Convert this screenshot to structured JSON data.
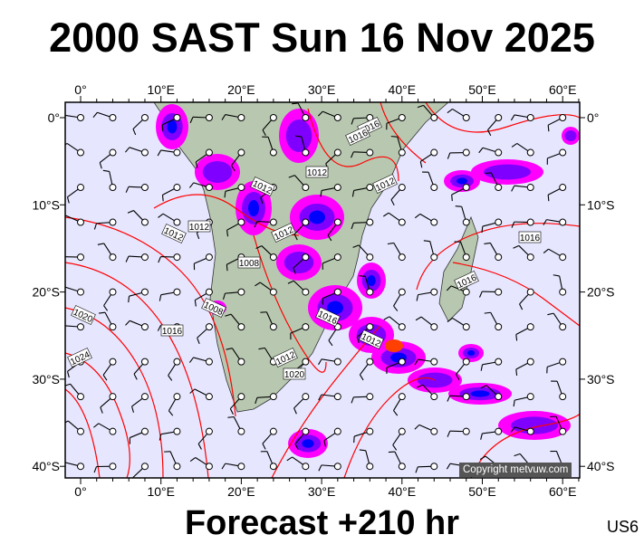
{
  "header": {
    "title": "2000 SAST Sun 16 Nov 2025"
  },
  "footer": {
    "forecast": "Forecast +210 hr",
    "model_code": "US6"
  },
  "map": {
    "lon_ticks": [
      "0°",
      "10°E",
      "20°E",
      "30°E",
      "40°E",
      "50°E",
      "60°E"
    ],
    "lat_ticks": [
      "0°",
      "10°S",
      "20°S",
      "30°S",
      "40°S"
    ],
    "isobar_labels": [
      "1016",
      "1012",
      "1012",
      "1012",
      "1012",
      "1012",
      "1012",
      "1008",
      "1008",
      "1016",
      "1016",
      "1020",
      "1024",
      "1016",
      "1012",
      "1012",
      "1020",
      "1016",
      "1016"
    ],
    "copyright": "Copyright metvuw.com",
    "colors": {
      "ocean": "#e6e6ff",
      "land": "#b8c8b0",
      "isobar": "#ff0000",
      "rain_low": "#ff00ff",
      "rain_mid": "#8000ff",
      "rain_high": "#0000ff",
      "rain_peak": "#ff4000"
    }
  }
}
